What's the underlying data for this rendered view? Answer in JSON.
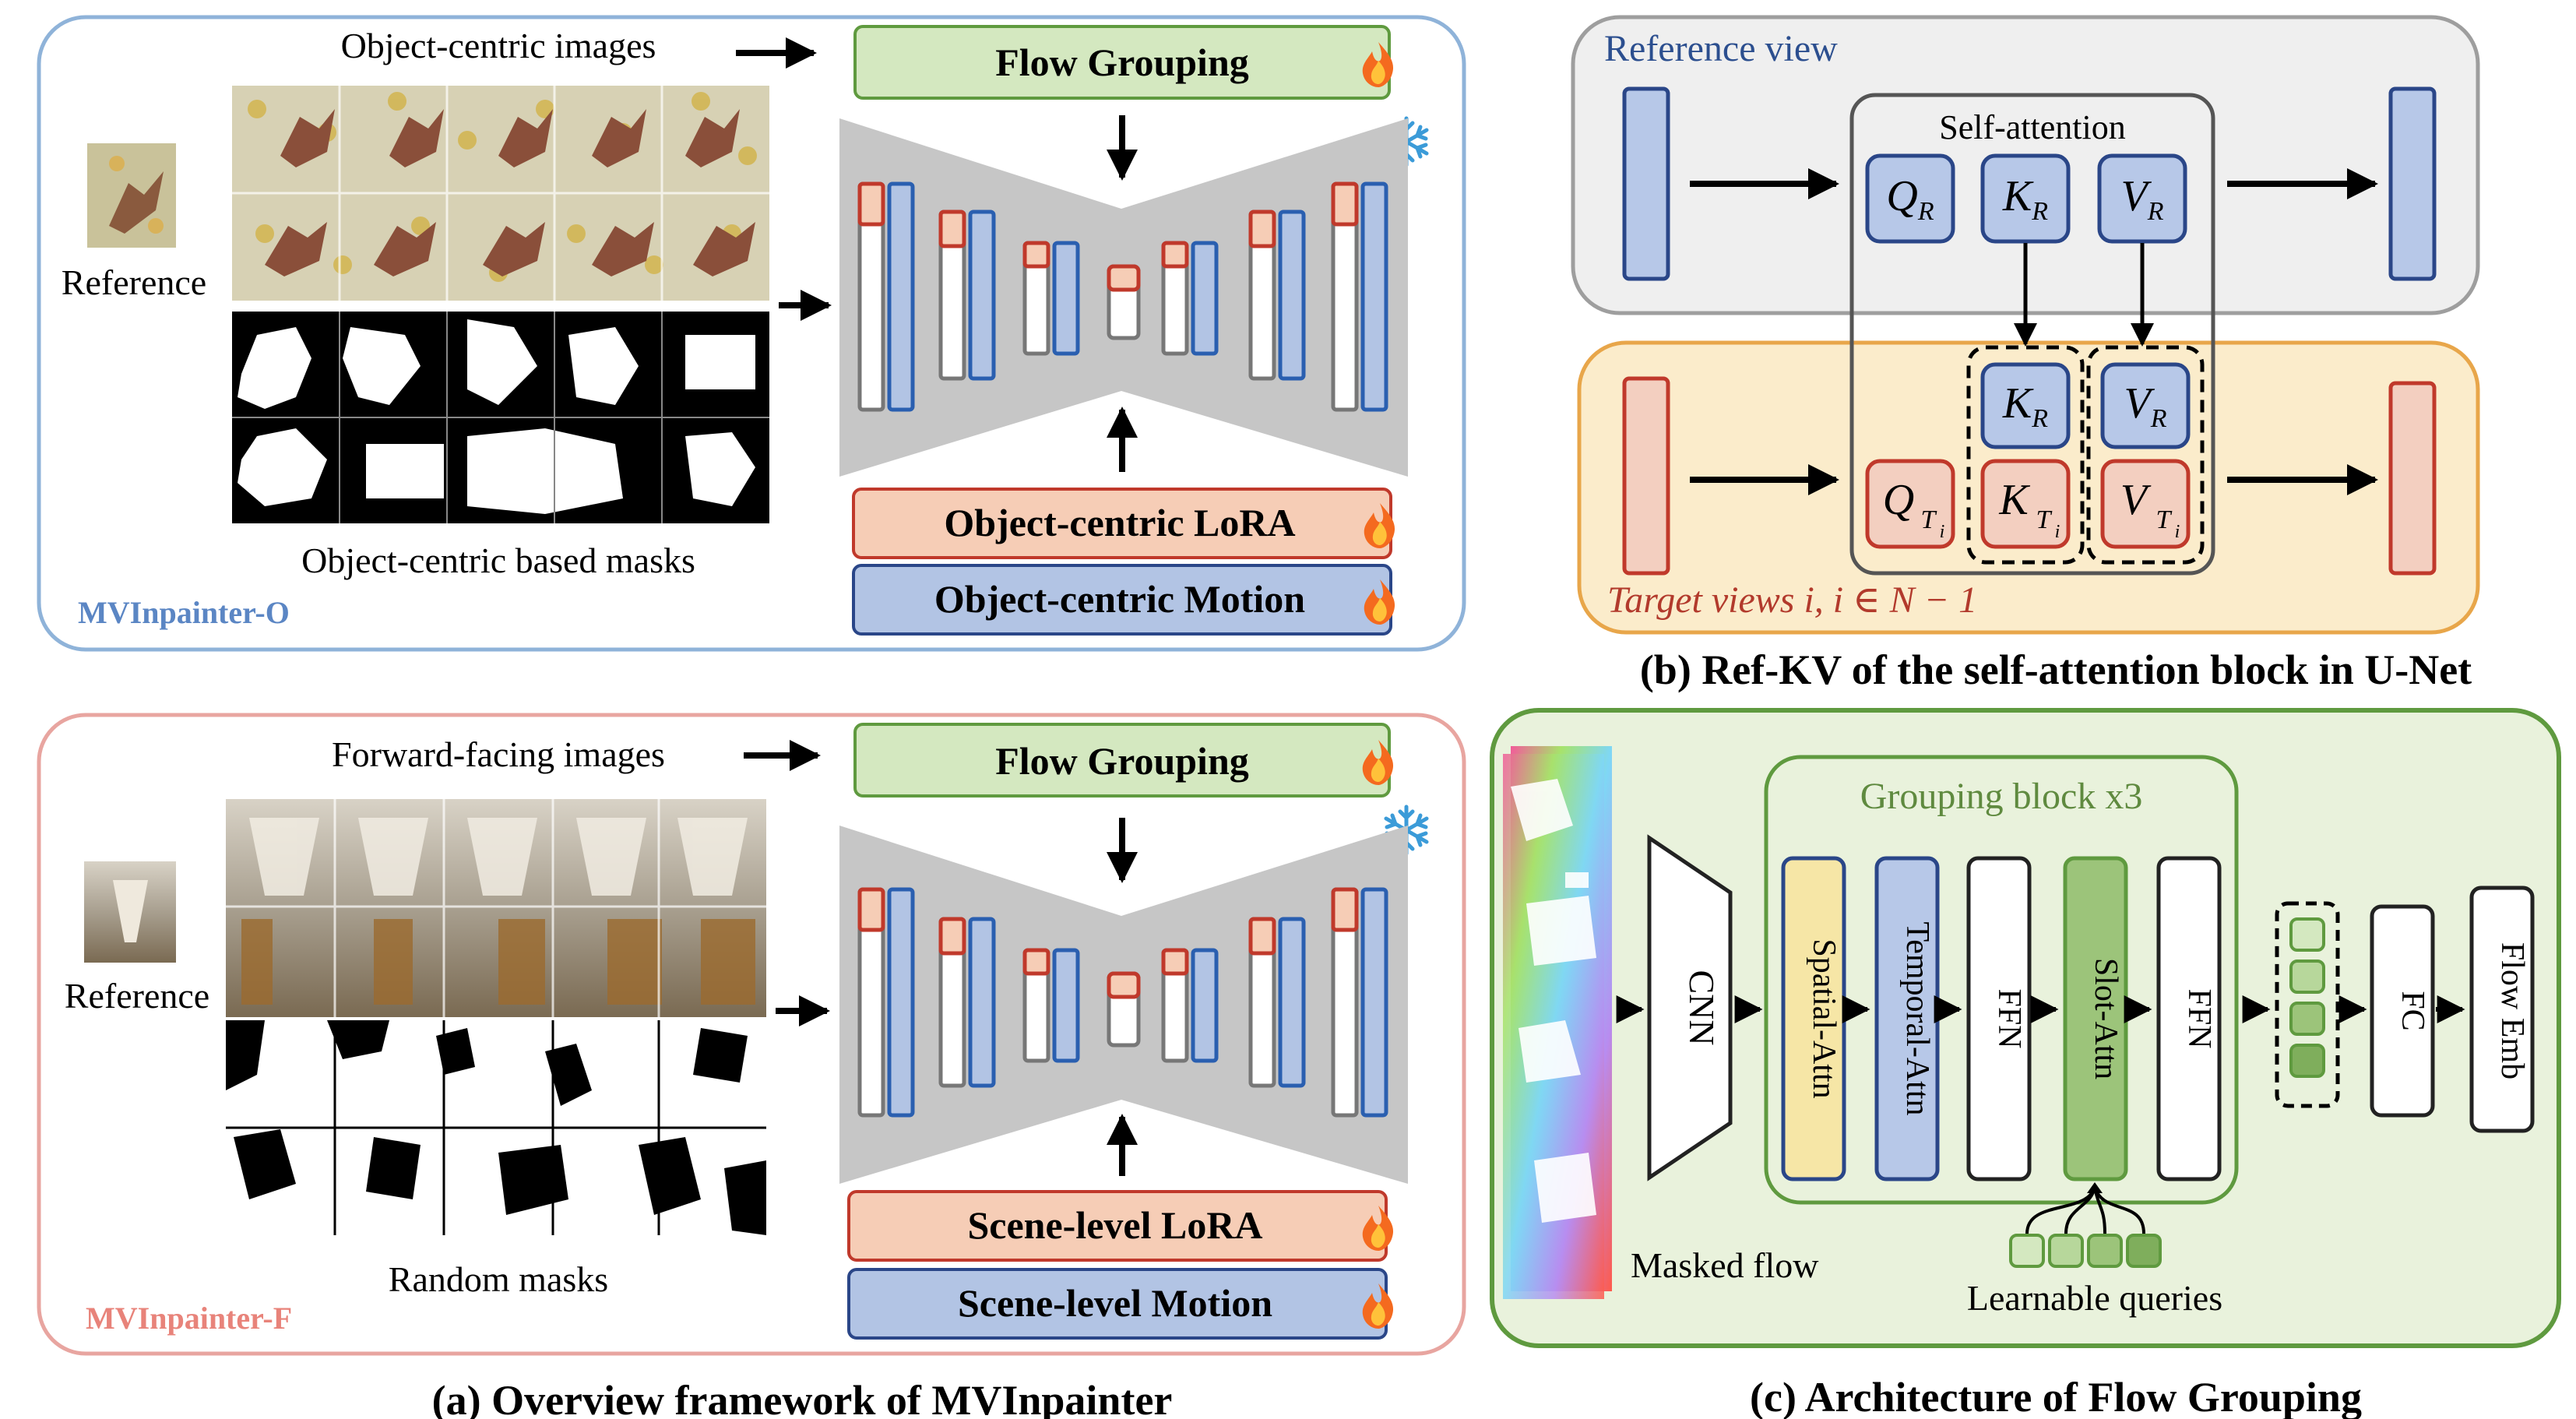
{
  "colors": {
    "blue_frame": "#8fb3d9",
    "pink_frame": "#e8a5a0",
    "green_frame": "#5f9a3f",
    "gray_panel": "#efefef",
    "cream_panel": "#fbeccb",
    "green_panel": "#e9f2dc",
    "flow_green": "#d4e8c0",
    "lora_peach": "#f6cdb6",
    "motion_blue": "#b2c4e4",
    "unet_gray": "#c6c6c6",
    "qkv_blue_fill": "#b7c8e8",
    "qkv_blue_stroke": "#2a4688",
    "qkv_red_fill": "#f3cfc0",
    "qkv_red_stroke": "#c0392b",
    "title_blue": "#2c4f8f",
    "title_red": "#b23a2c",
    "slot_green": "#9cc47a",
    "spatial_yellow": "#f6e6a6"
  },
  "panel_a_top": {
    "images_label": "Object-centric images",
    "reference_label": "Reference",
    "masks_label": "Object-centric based masks",
    "model_name": "MVInpainter-O",
    "flow_grouping": "Flow Grouping",
    "lora": "Object-centric LoRA",
    "motion": "Object-centric Motion",
    "snowflake_icon": "snowflake-icon",
    "fire_icon": "fire-icon"
  },
  "panel_a_bottom": {
    "images_label": "Forward-facing images",
    "reference_label": "Reference",
    "masks_label": "Random masks",
    "model_name": "MVInpainter-F",
    "flow_grouping": "Flow Grouping",
    "lora": "Scene-level LoRA",
    "motion": "Scene-level Motion"
  },
  "panel_b": {
    "reference_view": "Reference view",
    "self_attention": "Self-attention",
    "q_ref": "Q",
    "k_ref": "K",
    "v_ref": "V",
    "sub_r": "R",
    "sub_t": "T",
    "sub_i": "i",
    "target_views": "Target views i,  i ∈ N − 1",
    "caption": "(b) Ref-KV of the self-attention block in U-Net"
  },
  "panel_c": {
    "masked_flow": "Masked flow",
    "cnn": "CNN",
    "grouping_block": "Grouping block x3",
    "spatial_attn": "Spatial-Attn",
    "temporal_attn": "Temporal-Attn",
    "ffn1": "FFN",
    "slot_attn": "Slot-Attn",
    "ffn2": "FFN",
    "fc": "FC",
    "flow_emb": "Flow Emb",
    "learnable_queries": "Learnable queries",
    "caption": "(c) Architecture of Flow Grouping"
  },
  "caption_a": "(a) Overview framework of MVInpainter"
}
